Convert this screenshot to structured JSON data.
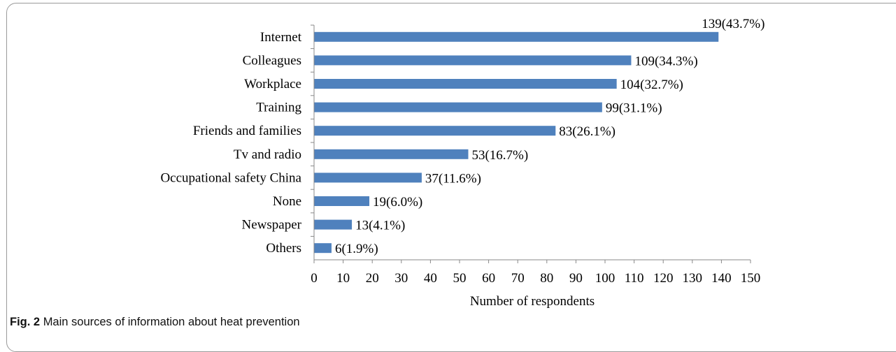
{
  "chart_data": {
    "type": "bar",
    "orientation": "horizontal",
    "categories": [
      "Internet",
      "Colleagues",
      "Workplace",
      "Training",
      "Friends and families",
      "Tv and radio",
      "Occupational safety China",
      "None",
      "Newspaper",
      "Others"
    ],
    "values": [
      139,
      109,
      104,
      99,
      83,
      53,
      37,
      19,
      13,
      6
    ],
    "data_labels": [
      "139(43.7%)",
      "109(34.3%)",
      "104(32.7%)",
      "99(31.1%)",
      "83(26.1%)",
      "53(16.7%)",
      "37(11.6%)",
      "19(6.0%)",
      "13(4.1%)",
      "6(1.9%)"
    ],
    "xlabel": "Number of respondents",
    "xlim": [
      0,
      150
    ],
    "xticks": [
      0,
      10,
      20,
      30,
      40,
      50,
      60,
      70,
      80,
      90,
      100,
      110,
      120,
      130,
      140,
      150
    ],
    "bar_color": "#4f81bd",
    "grid": false,
    "legend": "none"
  },
  "caption": {
    "figure_label": "Fig. 2",
    "text": "Main sources of information about heat prevention"
  }
}
